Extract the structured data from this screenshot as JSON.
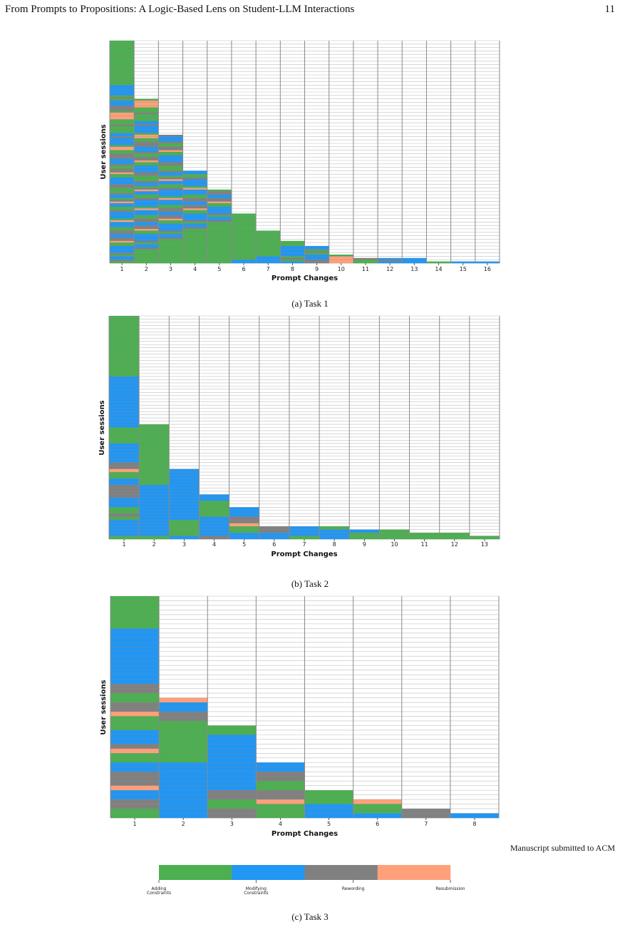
{
  "header": {
    "running_title": "From Prompts to Propositions: A Logic-Based Lens on Student-LLM Interactions",
    "page_number": "11"
  },
  "categories": [
    {
      "key": "A",
      "label": "Adding Constraints",
      "color": "#4caf50"
    },
    {
      "key": "M",
      "label": "Modifying Constraints",
      "color": "#2196f3"
    },
    {
      "key": "R",
      "label": "Rewording",
      "color": "#808080"
    },
    {
      "key": "S",
      "label": "Resubmission",
      "color": "#ffa07a"
    }
  ],
  "empty_cell_color": "#ffffff",
  "gridline_color": "#8a8a8a",
  "chart_data": [
    {
      "type": "heatmap",
      "caption": "(a) Task 1",
      "xlabel": "Prompt Changes",
      "ylabel": "User sessions",
      "n_changes": 16,
      "n_sessions": 130,
      "column_fill_counts": [
        130,
        96,
        75,
        54,
        43,
        29,
        19,
        13,
        10,
        5,
        3,
        3,
        3,
        1,
        1,
        1
      ],
      "fill_sequence": [
        "A",
        "A",
        "A",
        "A",
        "A",
        "A",
        "A",
        "A",
        "A",
        "A",
        "A",
        "A",
        "A",
        "A",
        "A",
        "A",
        "A",
        "A",
        "A",
        "A",
        "A",
        "A",
        "A",
        "A",
        "A",
        "A",
        "M",
        "M",
        "M",
        "M",
        "M",
        "M",
        "A",
        "R",
        "A",
        "M",
        "M",
        "M",
        "R",
        "R",
        "R",
        "A",
        "S",
        "S",
        "S",
        "S",
        "A",
        "A",
        "A",
        "R",
        "A",
        "A",
        "A",
        "A",
        "M",
        "M",
        "R",
        "M",
        "M",
        "M",
        "M",
        "A",
        "S",
        "S",
        "A",
        "A",
        "R",
        "R",
        "R",
        "M",
        "M",
        "M",
        "R",
        "A",
        "A",
        "R",
        "R",
        "S",
        "A",
        "A",
        "M",
        "M",
        "M",
        "M",
        "R",
        "R",
        "A",
        "A",
        "A",
        "R",
        "M",
        "M",
        "A",
        "R",
        "S",
        "M",
        "M",
        "A",
        "A",
        "R",
        "M",
        "M",
        "M",
        "M",
        "A",
        "S",
        "M",
        "M",
        "M",
        "A",
        "A",
        "R",
        "R",
        "M",
        "M",
        "R",
        "R",
        "S",
        "A",
        "A",
        "M",
        "M",
        "M",
        "M",
        "R",
        "A",
        "M",
        "M",
        "R",
        "A",
        "A"
      ],
      "column_shifts": [
        0,
        7,
        13,
        19,
        23,
        29,
        31,
        37,
        41,
        47,
        53,
        59,
        61,
        67,
        71,
        73
      ]
    },
    {
      "type": "heatmap",
      "caption": "(b) Task 2",
      "xlabel": "Prompt Changes",
      "ylabel": "User sessions",
      "n_changes": 13,
      "n_sessions": 70,
      "column_fill_counts": [
        70,
        36,
        22,
        14,
        10,
        4,
        4,
        4,
        3,
        3,
        2,
        2,
        1
      ],
      "fill_sequence": [
        "A",
        "A",
        "A",
        "A",
        "A",
        "A",
        "A",
        "A",
        "A",
        "A",
        "A",
        "A",
        "A",
        "A",
        "A",
        "A",
        "A",
        "A",
        "A",
        "M",
        "M",
        "M",
        "M",
        "M",
        "M",
        "M",
        "M",
        "M",
        "M",
        "M",
        "M",
        "M",
        "M",
        "M",
        "M",
        "A",
        "A",
        "A",
        "A",
        "A",
        "M",
        "M",
        "M",
        "M",
        "M",
        "M",
        "R",
        "R",
        "S",
        "A",
        "A",
        "M",
        "M",
        "R",
        "R",
        "R",
        "R",
        "M",
        "M",
        "M",
        "A",
        "A",
        "R",
        "A",
        "M",
        "M",
        "M",
        "M",
        "M",
        "A"
      ],
      "column_shifts": [
        0,
        36,
        41,
        47,
        53,
        59,
        61,
        67,
        71,
        73,
        79,
        83,
        89
      ]
    },
    {
      "type": "heatmap",
      "caption": "(c) Task 3",
      "xlabel": "Prompt Changes",
      "ylabel": "User sessions",
      "n_changes": 8,
      "n_sessions": 48,
      "column_fill_counts": [
        48,
        26,
        20,
        12,
        6,
        4,
        2,
        1
      ],
      "fill_sequence": [
        "A",
        "A",
        "A",
        "A",
        "A",
        "A",
        "A",
        "M",
        "M",
        "M",
        "M",
        "M",
        "M",
        "M",
        "M",
        "M",
        "M",
        "M",
        "M",
        "R",
        "R",
        "A",
        "A",
        "R",
        "R",
        "S",
        "A",
        "A",
        "A",
        "M",
        "M",
        "M",
        "R",
        "S",
        "A",
        "A",
        "M",
        "M",
        "R",
        "R",
        "R",
        "S",
        "M",
        "M",
        "R",
        "R",
        "A",
        "A"
      ],
      "column_shifts": [
        0,
        19,
        25,
        29,
        32,
        37,
        40,
        43
      ]
    }
  ],
  "legend": {
    "labels": [
      "Adding\nConstraints",
      "Modifying\nConstraints",
      "Rewording",
      "Resubmission"
    ]
  },
  "footer": {
    "note": "Manuscript submitted to ACM"
  }
}
